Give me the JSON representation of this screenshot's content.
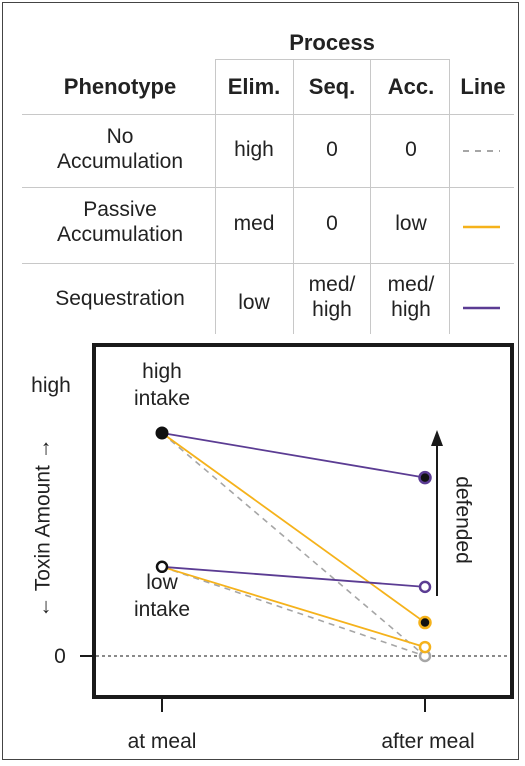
{
  "table": {
    "process_header": "Process",
    "columns": {
      "phenotype": "Phenotype",
      "elim": "Elim.",
      "seq": "Seq.",
      "acc": "Acc.",
      "line": "Line"
    },
    "rows": [
      {
        "phenotype": [
          "No",
          "Accumulation"
        ],
        "elim": [
          "high"
        ],
        "seq": [
          "0"
        ],
        "acc": [
          "0"
        ],
        "line_style": "dashed",
        "line_color": "#a6a6a6"
      },
      {
        "phenotype": [
          "Passive",
          "Accumulation"
        ],
        "elim": [
          "med"
        ],
        "seq": [
          "0"
        ],
        "acc": [
          "low"
        ],
        "line_style": "solid",
        "line_color": "#f5b21b"
      },
      {
        "phenotype": [
          "Sequestration"
        ],
        "elim": [
          "low"
        ],
        "seq": [
          "med/",
          "high"
        ],
        "acc": [
          "med/",
          "high"
        ],
        "line_style": "solid",
        "line_color": "#5b3c93"
      }
    ]
  },
  "chart_data": {
    "type": "line",
    "ylabel": "← Toxin Amount →",
    "y_tick_labels": [
      "0",
      "high"
    ],
    "x_categories": [
      "at meal",
      "after meal"
    ],
    "annotations": {
      "high_intake": [
        "high",
        "intake"
      ],
      "low_intake": [
        "low",
        "intake"
      ],
      "defended": "defended"
    },
    "baseline_style": "dashed",
    "series": [
      {
        "intake": "high",
        "phenotype_row": 0,
        "values": [
          1.0,
          0.0
        ],
        "color": "#a6a6a6",
        "dashed": true,
        "marker": "gray-open"
      },
      {
        "intake": "low",
        "phenotype_row": 0,
        "values": [
          0.4,
          0.0
        ],
        "color": "#a6a6a6",
        "dashed": true,
        "marker": "gray-open"
      },
      {
        "intake": "high",
        "phenotype_row": 1,
        "values": [
          1.0,
          0.15
        ],
        "color": "#f5b21b",
        "dashed": false,
        "marker": "filled"
      },
      {
        "intake": "low",
        "phenotype_row": 1,
        "values": [
          0.4,
          0.04
        ],
        "color": "#f5b21b",
        "dashed": false,
        "marker": "open"
      },
      {
        "intake": "high",
        "phenotype_row": 2,
        "values": [
          1.0,
          0.8
        ],
        "color": "#5b3c93",
        "dashed": false,
        "marker": "filled"
      },
      {
        "intake": "low",
        "phenotype_row": 2,
        "values": [
          0.4,
          0.31
        ],
        "color": "#5b3c93",
        "dashed": false,
        "marker": "open"
      }
    ]
  }
}
